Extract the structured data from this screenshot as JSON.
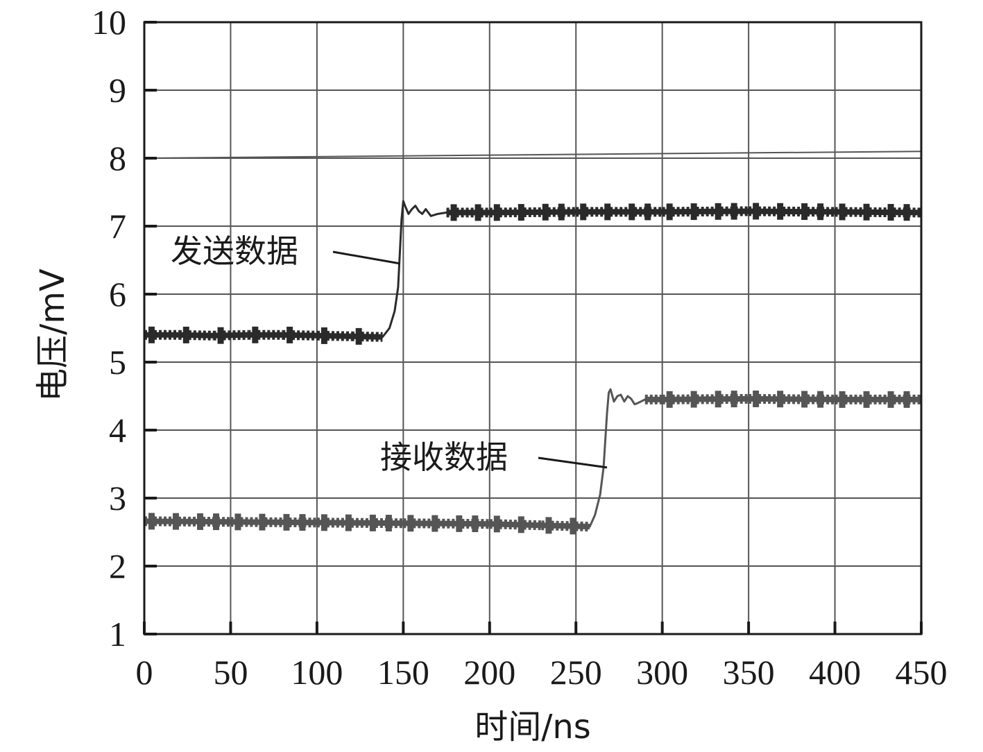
{
  "chart_data": {
    "type": "line",
    "title": "",
    "xlabel": "时间/ns",
    "ylabel": "电压/mV",
    "xlim": [
      0,
      450
    ],
    "ylim": [
      1,
      10
    ],
    "xticks": [
      0,
      50,
      100,
      150,
      200,
      250,
      300,
      350,
      400,
      450
    ],
    "yticks": [
      1,
      2,
      3,
      4,
      5,
      6,
      7,
      8,
      9,
      10
    ],
    "grid": true,
    "legend": "none",
    "series": [
      {
        "name": "发送数据",
        "color": "#2a2a2a",
        "x": [
          0,
          20,
          40,
          60,
          80,
          100,
          120,
          138,
          142,
          145,
          147,
          148,
          149,
          150,
          151,
          153,
          155,
          157,
          159,
          161,
          163,
          166,
          170,
          175,
          200,
          250,
          300,
          350,
          400,
          450
        ],
        "y": [
          5.4,
          5.4,
          5.39,
          5.4,
          5.4,
          5.39,
          5.38,
          5.37,
          5.5,
          5.75,
          6.1,
          6.6,
          7.1,
          7.37,
          7.3,
          7.18,
          7.25,
          7.3,
          7.22,
          7.18,
          7.25,
          7.15,
          7.18,
          7.2,
          7.2,
          7.21,
          7.21,
          7.22,
          7.21,
          7.2
        ]
      },
      {
        "name": "接收数据",
        "color": "#555555",
        "x": [
          0,
          50,
          100,
          150,
          200,
          230,
          258,
          261,
          264,
          266,
          267,
          268,
          269,
          270,
          272,
          274,
          276,
          278,
          280,
          282,
          284,
          286,
          290,
          300,
          350,
          400,
          450
        ],
        "y": [
          2.66,
          2.65,
          2.64,
          2.63,
          2.62,
          2.6,
          2.58,
          2.75,
          3.05,
          3.45,
          3.85,
          4.25,
          4.55,
          4.6,
          4.42,
          4.5,
          4.52,
          4.42,
          4.5,
          4.46,
          4.38,
          4.4,
          4.45,
          4.45,
          4.46,
          4.45,
          4.45
        ]
      }
    ],
    "reference_line": {
      "x": [
        0,
        450
      ],
      "y": [
        8.0,
        8.1
      ],
      "color": "#555555"
    },
    "annotations": [
      {
        "text": "发送数据",
        "series": 0,
        "point": [
          148,
          6.45
        ]
      },
      {
        "text": "接收数据",
        "series": 1,
        "point": [
          268,
          3.45
        ]
      }
    ]
  }
}
